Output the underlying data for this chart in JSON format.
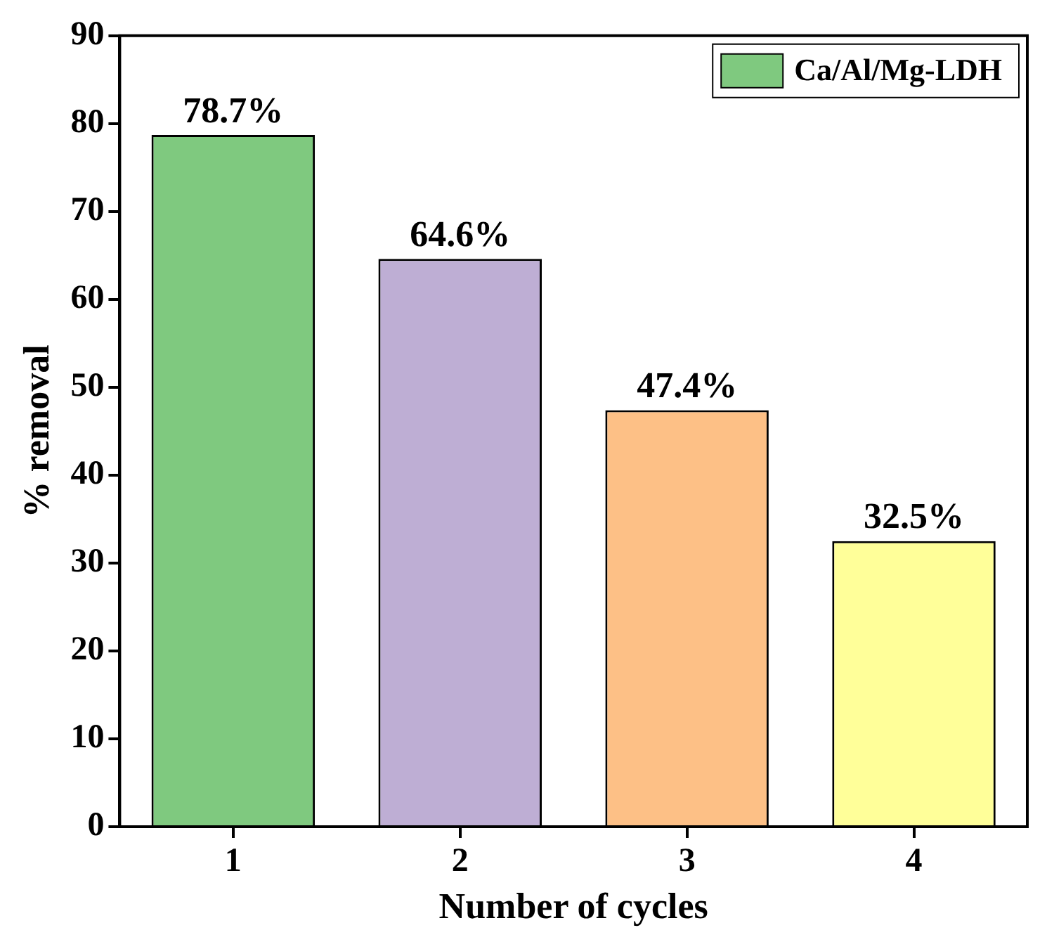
{
  "chart_data": {
    "type": "bar",
    "xlabel": "Number of cycles",
    "ylabel": "% removal",
    "categories": [
      "1",
      "2",
      "3",
      "4"
    ],
    "series": [
      {
        "name": "Ca/Al/Mg-LDH",
        "colors": [
          "#7fc97f",
          "#beaed4",
          "#fdc086",
          "#ffff99"
        ],
        "values": [
          78.7,
          64.6,
          47.4,
          32.5
        ],
        "value_labels": [
          "78.7%",
          "64.6%",
          "47.4%",
          "32.5%"
        ]
      }
    ],
    "ylim": [
      0,
      90
    ],
    "yticks": [
      0,
      10,
      20,
      30,
      40,
      50,
      60,
      70,
      80,
      90
    ],
    "grid": false,
    "legend": "top right"
  }
}
